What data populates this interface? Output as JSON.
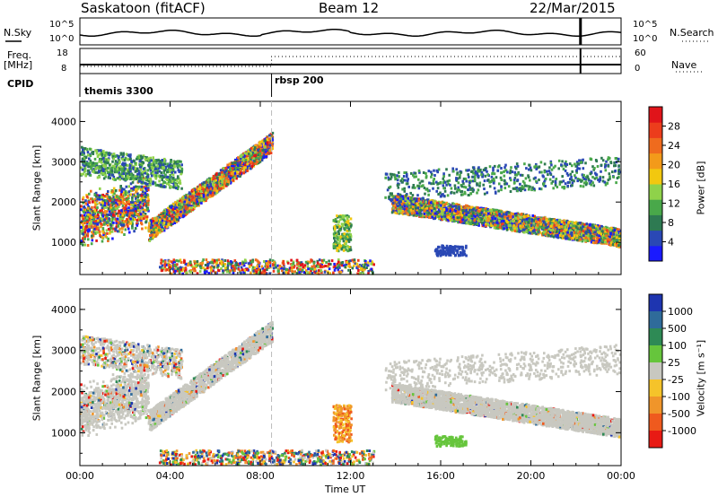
{
  "header": {
    "station": "Saskatoon (fitACF)",
    "beam": "Beam 12",
    "date": "22/Mar/2015"
  },
  "top_panels": {
    "nsky_label": "N.Sky",
    "nsky_ticks": [
      "10^5",
      "10^0"
    ],
    "nsearch_label": "N.Search",
    "nsearch_ticks": [
      "10^5",
      "10^0"
    ],
    "freq_label_line1": "Freq.",
    "freq_label_line2": "[MHz]",
    "freq_ticks": [
      "18",
      "8"
    ],
    "nave_label": "Nave",
    "nave_ticks": [
      "60",
      "0"
    ],
    "cpid_label": "CPID",
    "cpid_entries": [
      "themis 3300",
      "rbsp 200"
    ]
  },
  "chart_data": [
    {
      "type": "heatmap",
      "name": "power-panel",
      "ylabel": "Slant Range [km]",
      "y_ticks": [
        "4000",
        "3000",
        "2000",
        "1000"
      ],
      "ylim": [
        200,
        4500
      ],
      "colorbar_label": "Power [dB]",
      "colorbar_ticks": [
        "28",
        "24",
        "20",
        "16",
        "12",
        "8",
        "4"
      ],
      "colorbar_colors": [
        "#1a1aff",
        "#2a48b5",
        "#2e7a52",
        "#49a84a",
        "#8fd24a",
        "#f2c80f",
        "#f39a1a",
        "#ef6b1e",
        "#ec3d1c",
        "#e0141a"
      ]
    },
    {
      "type": "heatmap",
      "name": "velocity-panel",
      "ylabel": "Slant Range [km]",
      "y_ticks": [
        "4000",
        "3000",
        "2000",
        "1000"
      ],
      "ylim": [
        200,
        4500
      ],
      "colorbar_label": "Velocity [m s⁻¹]",
      "colorbar_ticks": [
        "1000",
        "500",
        "100",
        "25",
        "-25",
        "-100",
        "-500",
        "-1000"
      ],
      "colorbar_colors": [
        "#1e35b0",
        "#2f6b9a",
        "#2e8a55",
        "#66c53c",
        "#c8c8c0",
        "#f5c32a",
        "#f0952a",
        "#ef5a1e",
        "#e81a14"
      ]
    }
  ],
  "xaxis": {
    "ticks": [
      "00:00",
      "04:00",
      "08:00",
      "12:00",
      "16:00",
      "20:00",
      "00:00"
    ],
    "label": "Time UT"
  }
}
